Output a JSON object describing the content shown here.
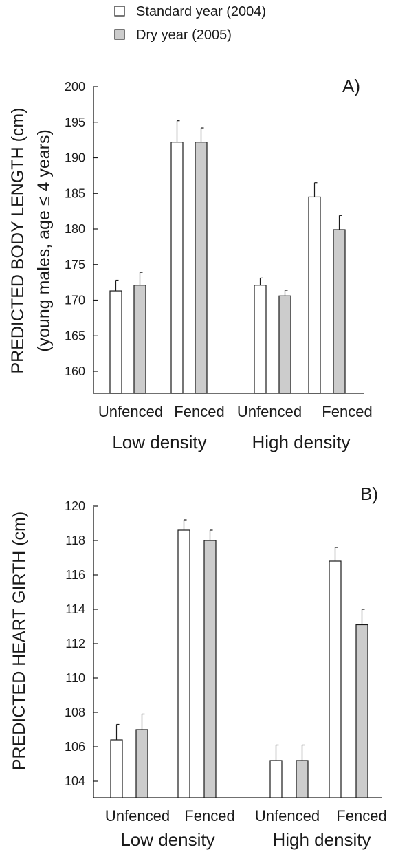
{
  "legend": [
    {
      "label": "Standard year (2004)",
      "color": "#ffffff"
    },
    {
      "label": "Dry year (2005)",
      "color": "#cccccc"
    }
  ],
  "chart_data": [
    {
      "type": "bar",
      "panel_label": "A)",
      "ylabel_lines": [
        "PREDICTED BODY LENGTH (cm)",
        "(young males, age ≤ 4 years)"
      ],
      "ylim": [
        155,
        201
      ],
      "yticks": [
        160,
        165,
        170,
        175,
        180,
        185,
        190,
        195,
        200
      ],
      "categories": [
        "Unfenced",
        "Fenced",
        "Unfenced",
        "Fenced"
      ],
      "groups": [
        "Low density",
        "High density"
      ],
      "series": [
        {
          "name": "Standard year (2004)",
          "values": [
            171.3,
            192.2,
            172.1,
            184.5
          ],
          "errors": [
            1.5,
            3.0,
            1.0,
            2.0
          ]
        },
        {
          "name": "Dry year (2005)",
          "values": [
            172.1,
            192.2,
            170.6,
            179.9
          ],
          "errors": [
            1.8,
            2.0,
            0.8,
            2.0
          ]
        }
      ]
    },
    {
      "type": "bar",
      "panel_label": "B)",
      "ylabel_lines": [
        "PREDICTED HEART GIRTH (cm)"
      ],
      "ylim": [
        102.5,
        120.2
      ],
      "yticks": [
        104,
        106,
        108,
        110,
        112,
        114,
        116,
        118,
        120
      ],
      "categories": [
        "Unfenced",
        "Fenced",
        "Unfenced",
        "Fenced"
      ],
      "groups": [
        "Low density",
        "High density"
      ],
      "series": [
        {
          "name": "Standard year (2004)",
          "values": [
            106.4,
            118.6,
            105.2,
            116.8
          ],
          "errors": [
            0.9,
            0.6,
            0.9,
            0.8
          ]
        },
        {
          "name": "Dry year (2005)",
          "values": [
            107.0,
            118.0,
            105.2,
            113.1
          ],
          "errors": [
            0.9,
            0.6,
            0.9,
            0.9
          ]
        }
      ]
    }
  ]
}
